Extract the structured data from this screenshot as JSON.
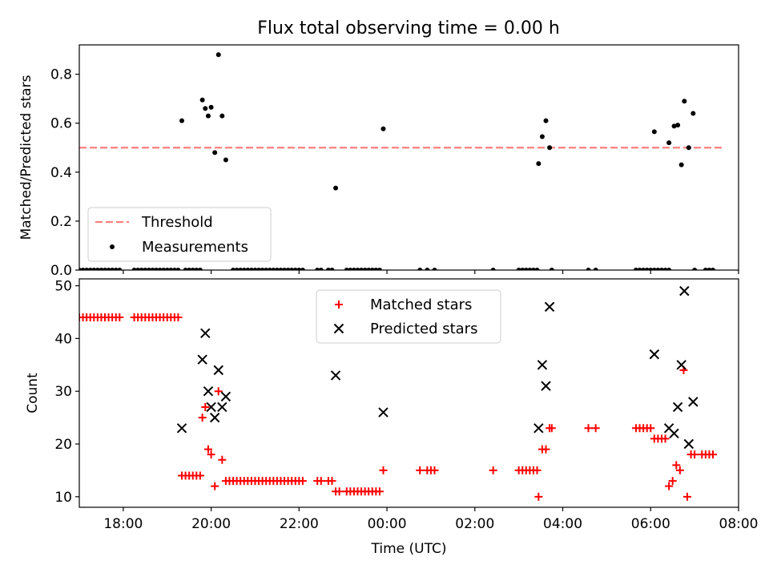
{
  "figure": {
    "title": "Flux total observing time = 0.00 h"
  },
  "chart_data": [
    {
      "type": "scatter",
      "ylabel": "Matched/Predicted stars",
      "xlabel": "",
      "xlim": [
        "17:00",
        "08:00"
      ],
      "ylim": [
        0,
        0.92
      ],
      "yticks": [
        "0.0",
        "0.2",
        "0.4",
        "0.6",
        "0.8"
      ],
      "grid": false,
      "legend_position": "lower-left",
      "threshold": {
        "name": "Threshold",
        "value": 0.5,
        "x_start": "17:00",
        "x_end": "07:40",
        "color": "#ff7f7f",
        "style": "dashed"
      },
      "series": [
        {
          "name": "Measurements",
          "color": "#000000",
          "marker": "dot",
          "points": [
            [
              "17:00",
              0
            ],
            [
              "17:05",
              0
            ],
            [
              "17:10",
              0
            ],
            [
              "17:15",
              0
            ],
            [
              "17:20",
              0
            ],
            [
              "17:25",
              0
            ],
            [
              "17:30",
              0
            ],
            [
              "17:35",
              0
            ],
            [
              "17:40",
              0
            ],
            [
              "17:45",
              0
            ],
            [
              "17:50",
              0
            ],
            [
              "17:55",
              0
            ],
            [
              "18:15",
              0
            ],
            [
              "18:20",
              0
            ],
            [
              "18:25",
              0
            ],
            [
              "18:30",
              0
            ],
            [
              "18:35",
              0
            ],
            [
              "18:40",
              0
            ],
            [
              "18:45",
              0
            ],
            [
              "18:50",
              0
            ],
            [
              "18:55",
              0
            ],
            [
              "19:00",
              0
            ],
            [
              "19:05",
              0
            ],
            [
              "19:10",
              0
            ],
            [
              "19:15",
              0
            ],
            [
              "19:20",
              0.61
            ],
            [
              "19:25",
              0
            ],
            [
              "19:30",
              0
            ],
            [
              "19:35",
              0
            ],
            [
              "19:40",
              0
            ],
            [
              "19:45",
              0
            ],
            [
              "19:48",
              0.695
            ],
            [
              "19:52",
              0.66
            ],
            [
              "19:56",
              0.63
            ],
            [
              "20:00",
              0.665
            ],
            [
              "20:05",
              0.48
            ],
            [
              "20:10",
              0.88
            ],
            [
              "20:15",
              0.63
            ],
            [
              "20:20",
              0.45
            ],
            [
              "20:30",
              0
            ],
            [
              "20:35",
              0
            ],
            [
              "20:40",
              0
            ],
            [
              "20:45",
              0
            ],
            [
              "20:50",
              0
            ],
            [
              "20:55",
              0
            ],
            [
              "21:00",
              0
            ],
            [
              "21:05",
              0
            ],
            [
              "21:10",
              0
            ],
            [
              "21:15",
              0
            ],
            [
              "21:20",
              0
            ],
            [
              "21:25",
              0
            ],
            [
              "21:30",
              0
            ],
            [
              "21:35",
              0
            ],
            [
              "21:40",
              0
            ],
            [
              "21:45",
              0
            ],
            [
              "21:50",
              0
            ],
            [
              "21:55",
              0
            ],
            [
              "22:00",
              0
            ],
            [
              "22:05",
              0
            ],
            [
              "22:25",
              0
            ],
            [
              "22:30",
              0
            ],
            [
              "22:40",
              0
            ],
            [
              "22:45",
              0
            ],
            [
              "22:50",
              0.335
            ],
            [
              "23:05",
              0
            ],
            [
              "23:10",
              0
            ],
            [
              "23:15",
              0
            ],
            [
              "23:20",
              0
            ],
            [
              "23:25",
              0
            ],
            [
              "23:30",
              0
            ],
            [
              "23:35",
              0
            ],
            [
              "23:40",
              0
            ],
            [
              "23:45",
              0
            ],
            [
              "23:50",
              0
            ],
            [
              "23:55",
              0.577
            ],
            [
              "00:45",
              0
            ],
            [
              "00:55",
              0
            ],
            [
              "01:05",
              0
            ],
            [
              "02:25",
              0
            ],
            [
              "03:00",
              0
            ],
            [
              "03:05",
              0
            ],
            [
              "03:10",
              0
            ],
            [
              "03:15",
              0
            ],
            [
              "03:20",
              0
            ],
            [
              "03:25",
              0
            ],
            [
              "03:27",
              0.435
            ],
            [
              "03:32",
              0.545
            ],
            [
              "03:37",
              0.61
            ],
            [
              "03:42",
              0.5
            ],
            [
              "03:45",
              0
            ],
            [
              "04:35",
              0
            ],
            [
              "04:45",
              0
            ],
            [
              "05:40",
              0
            ],
            [
              "05:45",
              0
            ],
            [
              "05:50",
              0
            ],
            [
              "05:55",
              0
            ],
            [
              "06:00",
              0
            ],
            [
              "06:05",
              0
            ],
            [
              "06:10",
              0
            ],
            [
              "06:15",
              0
            ],
            [
              "06:20",
              0
            ],
            [
              "06:25",
              0
            ],
            [
              "06:05",
              0.565
            ],
            [
              "06:25",
              0.52
            ],
            [
              "06:32",
              0.588
            ],
            [
              "06:37",
              0.592
            ],
            [
              "06:42",
              0.43
            ],
            [
              "06:46",
              0.69
            ],
            [
              "06:52",
              0.5
            ],
            [
              "06:58",
              0.64
            ],
            [
              "07:00",
              0
            ],
            [
              "07:15",
              0
            ],
            [
              "07:20",
              0
            ],
            [
              "07:25",
              0
            ]
          ]
        }
      ],
      "legend": [
        "Threshold",
        "Measurements"
      ]
    },
    {
      "type": "scatter",
      "ylabel": "Count",
      "xlabel": "Time (UTC)",
      "xlim": [
        "17:00",
        "08:00"
      ],
      "ylim": [
        8,
        51.3
      ],
      "yticks": [
        "10",
        "20",
        "30",
        "40",
        "50"
      ],
      "xticks": [
        "18:00",
        "20:00",
        "22:00",
        "00:00",
        "02:00",
        "04:00",
        "06:00",
        "08:00"
      ],
      "grid": false,
      "legend_position": "upper-center",
      "series": [
        {
          "name": "Matched stars",
          "color": "#ff0000",
          "marker": "plus",
          "points": [
            [
              "17:00",
              44
            ],
            [
              "17:05",
              44
            ],
            [
              "17:10",
              44
            ],
            [
              "17:15",
              44
            ],
            [
              "17:20",
              44
            ],
            [
              "17:25",
              44
            ],
            [
              "17:30",
              44
            ],
            [
              "17:35",
              44
            ],
            [
              "17:40",
              44
            ],
            [
              "17:45",
              44
            ],
            [
              "17:50",
              44
            ],
            [
              "17:55",
              44
            ],
            [
              "18:15",
              44
            ],
            [
              "18:20",
              44
            ],
            [
              "18:25",
              44
            ],
            [
              "18:30",
              44
            ],
            [
              "18:35",
              44
            ],
            [
              "18:40",
              44
            ],
            [
              "18:45",
              44
            ],
            [
              "18:50",
              44
            ],
            [
              "18:55",
              44
            ],
            [
              "19:00",
              44
            ],
            [
              "19:05",
              44
            ],
            [
              "19:10",
              44
            ],
            [
              "19:15",
              44
            ],
            [
              "19:20",
              14
            ],
            [
              "19:25",
              14
            ],
            [
              "19:30",
              14
            ],
            [
              "19:35",
              14
            ],
            [
              "19:40",
              14
            ],
            [
              "19:45",
              14
            ],
            [
              "19:48",
              25
            ],
            [
              "19:52",
              27
            ],
            [
              "19:56",
              19
            ],
            [
              "20:00",
              18
            ],
            [
              "20:05",
              12
            ],
            [
              "20:10",
              30
            ],
            [
              "20:15",
              17
            ],
            [
              "20:20",
              13
            ],
            [
              "20:25",
              13
            ],
            [
              "20:30",
              13
            ],
            [
              "20:35",
              13
            ],
            [
              "20:40",
              13
            ],
            [
              "20:45",
              13
            ],
            [
              "20:50",
              13
            ],
            [
              "20:55",
              13
            ],
            [
              "21:00",
              13
            ],
            [
              "21:05",
              13
            ],
            [
              "21:10",
              13
            ],
            [
              "21:15",
              13
            ],
            [
              "21:20",
              13
            ],
            [
              "21:25",
              13
            ],
            [
              "21:30",
              13
            ],
            [
              "21:35",
              13
            ],
            [
              "21:40",
              13
            ],
            [
              "21:45",
              13
            ],
            [
              "21:50",
              13
            ],
            [
              "21:55",
              13
            ],
            [
              "22:00",
              13
            ],
            [
              "22:05",
              13
            ],
            [
              "22:25",
              13
            ],
            [
              "22:30",
              13
            ],
            [
              "22:40",
              13
            ],
            [
              "22:45",
              13
            ],
            [
              "22:50",
              11
            ],
            [
              "22:55",
              11
            ],
            [
              "23:05",
              11
            ],
            [
              "23:10",
              11
            ],
            [
              "23:15",
              11
            ],
            [
              "23:20",
              11
            ],
            [
              "23:25",
              11
            ],
            [
              "23:30",
              11
            ],
            [
              "23:35",
              11
            ],
            [
              "23:40",
              11
            ],
            [
              "23:45",
              11
            ],
            [
              "23:50",
              11
            ],
            [
              "23:55",
              15
            ],
            [
              "00:45",
              15
            ],
            [
              "00:55",
              15
            ],
            [
              "01:00",
              15
            ],
            [
              "01:05",
              15
            ],
            [
              "02:25",
              15
            ],
            [
              "03:00",
              15
            ],
            [
              "03:05",
              15
            ],
            [
              "03:10",
              15
            ],
            [
              "03:15",
              15
            ],
            [
              "03:20",
              15
            ],
            [
              "03:25",
              15
            ],
            [
              "03:27",
              10
            ],
            [
              "03:32",
              19
            ],
            [
              "03:37",
              19
            ],
            [
              "03:42",
              23
            ],
            [
              "03:45",
              23
            ],
            [
              "04:35",
              23
            ],
            [
              "04:45",
              23
            ],
            [
              "05:40",
              23
            ],
            [
              "05:45",
              23
            ],
            [
              "05:50",
              23
            ],
            [
              "05:55",
              23
            ],
            [
              "06:00",
              23
            ],
            [
              "06:05",
              21
            ],
            [
              "06:10",
              21
            ],
            [
              "06:15",
              21
            ],
            [
              "06:20",
              21
            ],
            [
              "06:25",
              12
            ],
            [
              "06:30",
              13
            ],
            [
              "06:35",
              16
            ],
            [
              "06:40",
              15
            ],
            [
              "06:45",
              34
            ],
            [
              "06:50",
              10
            ],
            [
              "06:55",
              18
            ],
            [
              "07:00",
              18
            ],
            [
              "07:10",
              18
            ],
            [
              "07:15",
              18
            ],
            [
              "07:20",
              18
            ],
            [
              "07:25",
              18
            ]
          ]
        },
        {
          "name": "Predicted stars",
          "color": "#000000",
          "marker": "x",
          "points": [
            [
              "19:20",
              23
            ],
            [
              "19:48",
              36
            ],
            [
              "19:52",
              41
            ],
            [
              "19:56",
              30
            ],
            [
              "20:00",
              27
            ],
            [
              "20:05",
              25
            ],
            [
              "20:10",
              34
            ],
            [
              "20:15",
              27
            ],
            [
              "20:20",
              29
            ],
            [
              "22:50",
              33
            ],
            [
              "23:55",
              26
            ],
            [
              "03:27",
              23
            ],
            [
              "03:32",
              35
            ],
            [
              "03:37",
              31
            ],
            [
              "03:42",
              46
            ],
            [
              "06:05",
              37
            ],
            [
              "06:25",
              23
            ],
            [
              "06:32",
              22
            ],
            [
              "06:37",
              27
            ],
            [
              "06:42",
              35
            ],
            [
              "06:46",
              49
            ],
            [
              "06:52",
              20
            ],
            [
              "06:58",
              28
            ]
          ]
        }
      ],
      "legend": [
        "Matched stars",
        "Predicted stars"
      ]
    }
  ]
}
